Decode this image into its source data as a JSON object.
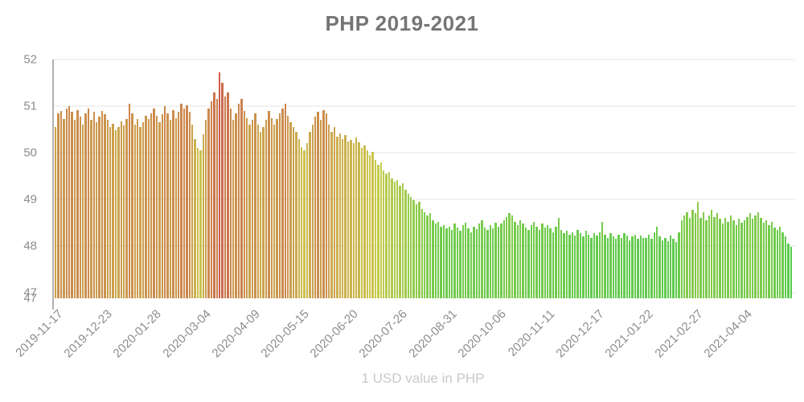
{
  "chart_data": {
    "type": "bar",
    "title": "PHP 2019-2021",
    "caption": "1 USD value in PHP",
    "ylim": [
      46.88,
      52.0
    ],
    "y_ticks": [
      52,
      51,
      50,
      49,
      48,
      47
    ],
    "baseline_extra_label": "47",
    "grid": true,
    "legend": false,
    "x_tick_step": 18,
    "x_tick_labels": [
      "2019-11-17",
      "2019-12-23",
      "2020-01-28",
      "2020-03-04",
      "2020-04-09",
      "2020-05-15",
      "2020-06-20",
      "2020-07-26",
      "2020-08-31",
      "2020-10-06",
      "2020-11-11",
      "2020-12-17",
      "2021-01-22",
      "2021-02-27",
      "2021-04-04"
    ],
    "values": [
      50.55,
      50.85,
      50.9,
      50.72,
      50.95,
      51.0,
      50.88,
      50.7,
      50.92,
      50.78,
      50.6,
      50.85,
      50.95,
      50.7,
      50.88,
      50.65,
      50.78,
      50.9,
      50.82,
      50.7,
      50.55,
      50.62,
      50.48,
      50.55,
      50.68,
      50.58,
      50.72,
      51.05,
      50.85,
      50.6,
      50.72,
      50.55,
      50.65,
      50.8,
      50.72,
      50.85,
      50.95,
      50.8,
      50.65,
      50.82,
      51.0,
      50.85,
      50.7,
      50.92,
      50.75,
      50.88,
      51.05,
      50.95,
      51.02,
      50.88,
      50.6,
      50.3,
      50.1,
      50.05,
      50.4,
      50.7,
      50.95,
      51.1,
      51.3,
      51.15,
      51.72,
      51.5,
      51.2,
      51.3,
      50.95,
      50.7,
      50.85,
      51.05,
      51.15,
      50.9,
      50.75,
      50.6,
      50.7,
      50.85,
      50.6,
      50.45,
      50.55,
      50.7,
      50.9,
      50.75,
      50.6,
      50.72,
      50.85,
      50.95,
      51.05,
      50.8,
      50.65,
      50.55,
      50.45,
      50.3,
      50.12,
      50.05,
      50.2,
      50.45,
      50.6,
      50.78,
      50.88,
      50.7,
      50.92,
      50.85,
      50.6,
      50.45,
      50.55,
      50.35,
      50.42,
      50.3,
      50.38,
      50.25,
      50.28,
      50.2,
      50.32,
      50.22,
      50.1,
      50.15,
      50.05,
      49.95,
      50.02,
      49.85,
      49.75,
      49.8,
      49.62,
      49.55,
      49.58,
      49.45,
      49.38,
      49.42,
      49.3,
      49.35,
      49.2,
      49.12,
      49.05,
      48.98,
      48.9,
      48.95,
      48.8,
      48.72,
      48.65,
      48.7,
      48.55,
      48.48,
      48.52,
      48.42,
      48.45,
      48.38,
      48.42,
      48.35,
      48.48,
      48.4,
      48.32,
      48.45,
      48.5,
      48.38,
      48.3,
      48.42,
      48.36,
      48.48,
      48.55,
      48.4,
      48.35,
      48.45,
      48.38,
      48.5,
      48.42,
      48.48,
      48.55,
      48.62,
      48.7,
      48.65,
      48.52,
      48.45,
      48.55,
      48.48,
      48.4,
      48.35,
      48.45,
      48.52,
      48.42,
      48.35,
      48.48,
      48.4,
      48.45,
      48.38,
      48.3,
      48.42,
      48.6,
      48.35,
      48.28,
      48.32,
      48.25,
      48.3,
      48.22,
      48.35,
      48.28,
      48.2,
      48.32,
      48.25,
      48.18,
      48.28,
      48.22,
      48.3,
      48.52,
      48.25,
      48.18,
      48.28,
      48.2,
      48.15,
      48.25,
      48.18,
      48.28,
      48.22,
      48.12,
      48.2,
      48.25,
      48.15,
      48.22,
      48.18,
      48.18,
      48.25,
      48.15,
      48.3,
      48.42,
      48.2,
      48.12,
      48.18,
      48.1,
      48.22,
      48.15,
      48.08,
      48.3,
      48.55,
      48.65,
      48.72,
      48.6,
      48.78,
      48.7,
      48.95,
      48.6,
      48.72,
      48.55,
      48.65,
      48.78,
      48.62,
      48.7,
      48.58,
      48.48,
      48.6,
      48.52,
      48.65,
      48.55,
      48.45,
      48.58,
      48.5,
      48.55,
      48.62,
      48.7,
      48.58,
      48.65,
      48.72,
      48.6,
      48.5,
      48.55,
      48.45,
      48.52,
      48.4,
      48.35,
      48.42,
      48.3,
      48.2,
      48.05,
      47.98
    ],
    "colors": {
      "scale_low_green": "#5cc653",
      "scale_mid_yellow": "#c6bc52",
      "scale_high_red": "#d35b4a",
      "axis_line": "#b1b1b1",
      "grid": "#f2f2f2",
      "tick_text": "#8c8c8c",
      "title_text": "#757575",
      "caption_text": "#c9c9c9"
    }
  }
}
